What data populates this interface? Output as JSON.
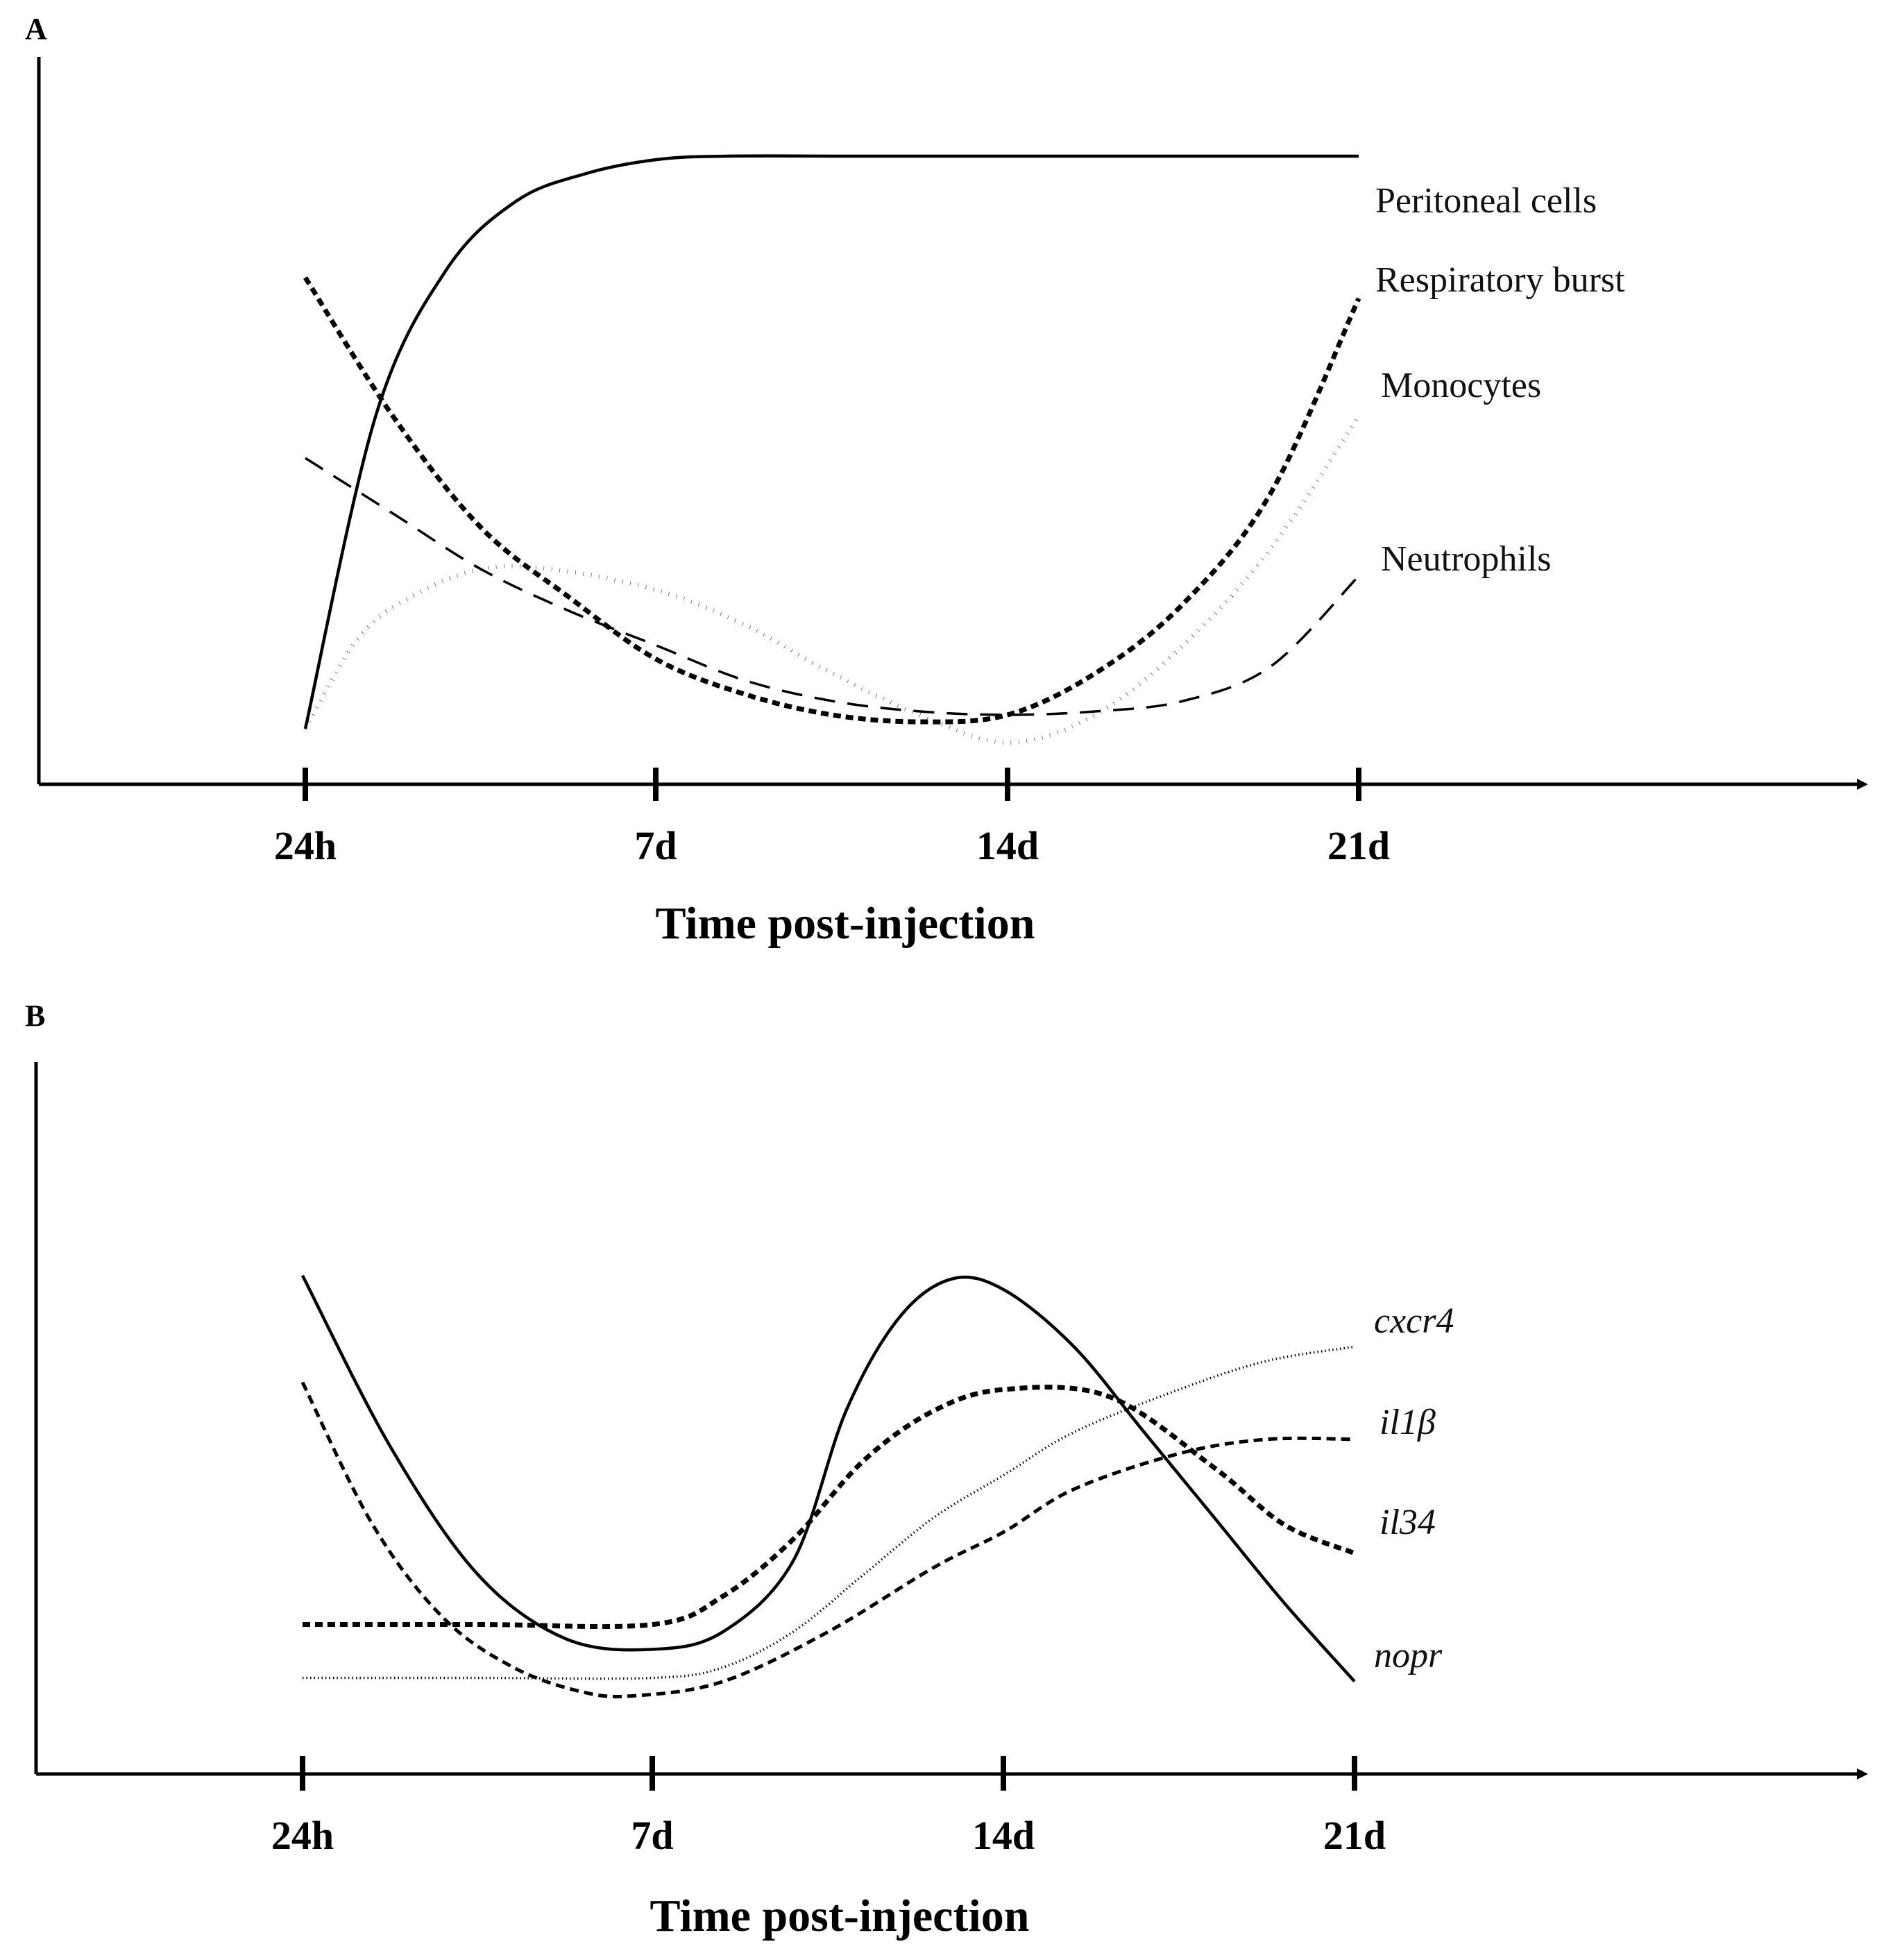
{
  "chart_data": [
    {
      "panel": "A",
      "type": "line",
      "xlabel": "Time post-injection",
      "ylabel": "",
      "x": [
        0,
        1,
        2,
        3
      ],
      "categories": [
        "24h",
        "7d",
        "14d",
        "21d"
      ],
      "xlim": [
        -0.76,
        4.5
      ],
      "ylim": [
        0,
        100
      ],
      "grid": false,
      "legend": "right",
      "series": [
        {
          "name": "Peritoneal cells",
          "style": "solid",
          "points": [
            [
              0,
              8
            ],
            [
              0.2,
              53
            ],
            [
              0.4,
              74
            ],
            [
              0.6,
              84
            ],
            [
              0.8,
              88
            ],
            [
              1,
              90
            ],
            [
              1.2,
              90.5
            ],
            [
              1.6,
              90.5
            ],
            [
              2,
              90.5
            ],
            [
              2.5,
              90.5
            ],
            [
              3,
              90.5
            ]
          ]
        },
        {
          "name": "Respiratory burst",
          "style": "short-dash",
          "points": [
            [
              0,
              73
            ],
            [
              0.25,
              53
            ],
            [
              0.5,
              37
            ],
            [
              0.75,
              27
            ],
            [
              1,
              18
            ],
            [
              1.25,
              13
            ],
            [
              1.5,
              10
            ],
            [
              1.75,
              9
            ],
            [
              2,
              10
            ],
            [
              2.25,
              16
            ],
            [
              2.5,
              26
            ],
            [
              2.75,
              42
            ],
            [
              3,
              70
            ]
          ]
        },
        {
          "name": "Monocytes",
          "style": "dotted",
          "points": [
            [
              0,
              8
            ],
            [
              0.15,
              21
            ],
            [
              0.3,
              27
            ],
            [
              0.5,
              31
            ],
            [
              0.7,
              31
            ],
            [
              1,
              28
            ],
            [
              1.25,
              23
            ],
            [
              1.5,
              16
            ],
            [
              1.75,
              10
            ],
            [
              2,
              6
            ],
            [
              2.25,
              10
            ],
            [
              2.5,
              20
            ],
            [
              2.75,
              34
            ],
            [
              3,
              53
            ]
          ]
        },
        {
          "name": "Neutrophils",
          "style": "long-dash",
          "points": [
            [
              0,
              47
            ],
            [
              0.25,
              39
            ],
            [
              0.5,
              31
            ],
            [
              0.75,
              25
            ],
            [
              1,
              20
            ],
            [
              1.25,
              15
            ],
            [
              1.5,
              12
            ],
            [
              1.75,
              10.5
            ],
            [
              2,
              10
            ],
            [
              2.25,
              10.5
            ],
            [
              2.5,
              12
            ],
            [
              2.75,
              17
            ],
            [
              3,
              30
            ]
          ]
        }
      ]
    },
    {
      "panel": "B",
      "type": "line",
      "xlabel": "Time post-injection",
      "ylabel": "",
      "x": [
        0,
        1,
        2,
        3
      ],
      "categories": [
        "24h",
        "7d",
        "14d",
        "21d"
      ],
      "xlim": [
        -0.76,
        4.5
      ],
      "ylim": [
        0,
        100
      ],
      "grid": false,
      "legend": "right",
      "series": [
        {
          "name": "cxcr4",
          "style": "fine-dotted",
          "points": [
            [
              0,
              13.5
            ],
            [
              0.5,
              13.5
            ],
            [
              1,
              13.5
            ],
            [
              1.2,
              15
            ],
            [
              1.4,
              20
            ],
            [
              1.6,
              28
            ],
            [
              1.8,
              36
            ],
            [
              2,
              42
            ],
            [
              2.2,
              48
            ],
            [
              2.5,
              54
            ],
            [
              2.75,
              58
            ],
            [
              3,
              60
            ]
          ]
        },
        {
          "name": "il1β",
          "style": "medium-dash",
          "points": [
            [
              0,
              55
            ],
            [
              0.2,
              35
            ],
            [
              0.4,
              22
            ],
            [
              0.6,
              15
            ],
            [
              0.8,
              11.5
            ],
            [
              0.95,
              11
            ],
            [
              1.2,
              13
            ],
            [
              1.5,
              20
            ],
            [
              1.8,
              29
            ],
            [
              2,
              34
            ],
            [
              2.2,
              40
            ],
            [
              2.5,
              45
            ],
            [
              2.75,
              47
            ],
            [
              3,
              47
            ]
          ]
        },
        {
          "name": "il34",
          "style": "short-dash",
          "points": [
            [
              0,
              21
            ],
            [
              0.5,
              21
            ],
            [
              1,
              21
            ],
            [
              1.2,
              25
            ],
            [
              1.4,
              33
            ],
            [
              1.6,
              44
            ],
            [
              1.8,
              51
            ],
            [
              2,
              54
            ],
            [
              2.3,
              53
            ],
            [
              2.6,
              43
            ],
            [
              2.8,
              35
            ],
            [
              3,
              31
            ]
          ]
        },
        {
          "name": "nopr",
          "style": "solid",
          "points": [
            [
              0,
              70
            ],
            [
              0.25,
              46
            ],
            [
              0.5,
              28
            ],
            [
              0.75,
              19
            ],
            [
              1,
              17.5
            ],
            [
              1.2,
              20
            ],
            [
              1.4,
              30
            ],
            [
              1.55,
              51
            ],
            [
              1.7,
              64
            ],
            [
              1.85,
              69.5
            ],
            [
              2,
              68
            ],
            [
              2.2,
              60
            ],
            [
              2.4,
              48
            ],
            [
              2.6,
              36
            ],
            [
              2.8,
              24
            ],
            [
              3,
              13
            ]
          ]
        }
      ]
    }
  ],
  "panels": [
    {
      "letter": "A",
      "ticks": [
        "24h",
        "7d",
        "14d",
        "21d"
      ],
      "xlabel": "Time post-injection",
      "legend_labels": [
        "Peritoneal cells",
        "Respiratory burst",
        "Monocytes",
        "Neutrophils"
      ]
    },
    {
      "letter": "B",
      "ticks": [
        "24h",
        "7d",
        "14d",
        "21d"
      ],
      "xlabel": "Time post-injection",
      "legend_labels": [
        "cxcr4",
        "il1β",
        "il34",
        "nopr"
      ]
    }
  ]
}
